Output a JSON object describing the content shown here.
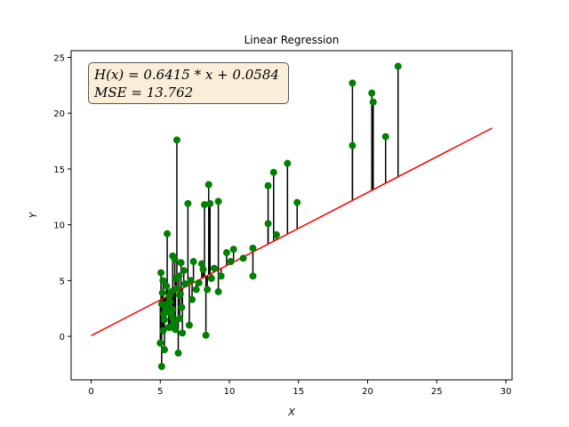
{
  "chart_data": {
    "type": "scatter",
    "title": "Linear Regression",
    "xlabel": "X",
    "ylabel": "Y",
    "xlim": [
      -1.45,
      30.45
    ],
    "ylim": [
      -3.9,
      25.6
    ],
    "xticks": [
      0,
      5,
      10,
      15,
      20,
      25,
      30
    ],
    "yticks": [
      0,
      5,
      10,
      15,
      20,
      25
    ],
    "xtick_labels": [
      "0",
      "5",
      "10",
      "15",
      "20",
      "25",
      "30"
    ],
    "ytick_labels": [
      "0",
      "5",
      "10",
      "15",
      "20",
      "25"
    ],
    "annotation": {
      "line1": "H(x) = 0.6415 * x + 0.0584",
      "line2": "MSE = 13.762"
    },
    "regression_line": {
      "slope": 0.6415,
      "intercept": 0.0584,
      "x_start": 0,
      "x_end": 29,
      "color": "#ff0000"
    },
    "point_color": "#008000",
    "residual_color": "#000000",
    "points": {
      "x": [
        5.1,
        5.5,
        5.9,
        6.2,
        6.5,
        7.0,
        7.4,
        7.6,
        8.0,
        8.3,
        8.5,
        9.2,
        9.2,
        9.8,
        10.1,
        10.3,
        11.0,
        11.7,
        11.7,
        12.8,
        12.8,
        13.2,
        13.4,
        14.2,
        14.9,
        18.9,
        18.9,
        20.3,
        20.4,
        21.3,
        22.2,
        5.2,
        5.3,
        5.4,
        5.6,
        5.7,
        5.8,
        6.0,
        6.1,
        6.3,
        6.4,
        6.6,
        6.8,
        7.1,
        7.3,
        8.4,
        8.6,
        8.7,
        5.05,
        5.15,
        5.25,
        5.45,
        5.65,
        5.85,
        6.05,
        6.15,
        6.35,
        6.45,
        6.55,
        6.7,
        7.2,
        7.8,
        8.1,
        8.2,
        8.9,
        9.4,
        5.0,
        5.1,
        5.2,
        5.3,
        5.5,
        5.6,
        5.7,
        5.9,
        6.0,
        6.2,
        6.4
      ],
      "y": [
        -2.7,
        9.2,
        7.2,
        17.6,
        6.6,
        11.9,
        6.7,
        4.2,
        6.5,
        0.1,
        13.6,
        12.1,
        4.0,
        7.5,
        6.7,
        7.8,
        7.0,
        7.9,
        5.4,
        13.5,
        10.1,
        14.7,
        9.1,
        15.5,
        12.0,
        22.7,
        17.1,
        21.8,
        21.0,
        17.9,
        24.2,
        0.5,
        -1.2,
        2.5,
        3.0,
        0.8,
        4.0,
        1.0,
        0.6,
        -1.5,
        3.7,
        0.3,
        4.7,
        1.0,
        3.3,
        4.2,
        11.9,
        5.2,
        5.7,
        3.9,
        2.0,
        4.5,
        3.6,
        1.8,
        6.9,
        5.2,
        5.4,
        3.8,
        2.6,
        5.9,
        5.0,
        4.8,
        6.0,
        11.8,
        6.1,
        5.4,
        -0.6,
        2.9,
        5.0,
        1.5,
        2.2,
        0.8,
        3.1,
        2.4,
        1.3,
        4.3,
        1.6
      ]
    }
  }
}
